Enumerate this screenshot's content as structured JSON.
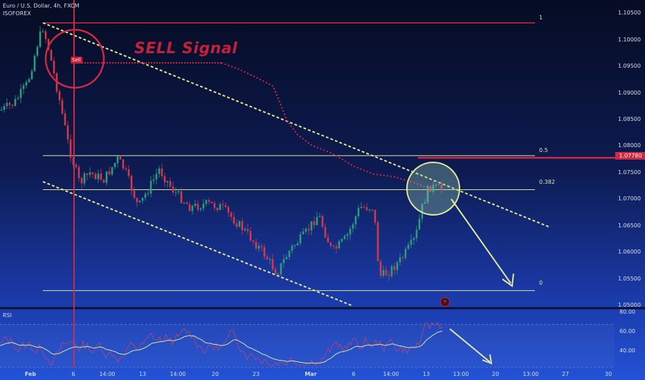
{
  "header": {
    "symbol": "Euro / U.S. Dollar, 4h, FXCM",
    "author": "ISOFOREX"
  },
  "annotations": {
    "sell_signal": "SELL Signal",
    "sell_tag": "Sell",
    "flash_icon": "flash-icon"
  },
  "price_axis": {
    "labels": [
      "1.10500",
      "1.10000",
      "1.09500",
      "1.09000",
      "1.08500",
      "1.08000",
      "1.07500",
      "1.07000",
      "1.06500",
      "1.06000",
      "1.05500",
      "1.05000"
    ],
    "current_price": "1.07780"
  },
  "fib_levels": {
    "one": "1",
    "half": "0.5",
    "f382": "0.382",
    "zero": "0"
  },
  "rsi": {
    "title": "RSI",
    "labels": [
      "80.00",
      "60.00",
      "40.00"
    ]
  },
  "time_axis": [
    {
      "label": "Feb",
      "bold": true
    },
    {
      "label": "6",
      "bold": false
    },
    {
      "label": "14:00",
      "bold": false
    },
    {
      "label": "13",
      "bold": false
    },
    {
      "label": "14:00",
      "bold": false
    },
    {
      "label": "20",
      "bold": false
    },
    {
      "label": "23",
      "bold": false
    },
    {
      "label": "Mar",
      "bold": true
    },
    {
      "label": "6",
      "bold": false
    },
    {
      "label": "14:00",
      "bold": false
    },
    {
      "label": "13",
      "bold": false
    },
    {
      "label": "13:00",
      "bold": false
    },
    {
      "label": "20",
      "bold": false
    },
    {
      "label": "13:00",
      "bold": false
    },
    {
      "label": "27",
      "bold": false
    },
    {
      "label": "30",
      "bold": false
    }
  ],
  "colors": {
    "up": "#2e9e7a",
    "down": "#d23a4a",
    "fib": "#e3eb9a",
    "trend": "#e6e888",
    "signal": "#d12a40",
    "rsi_line": "#b0457a",
    "rsi_ma": "#d8e6a0"
  },
  "chart_data": {
    "type": "candlestick",
    "instrument": "Euro / U.S. Dollar",
    "timeframe": "4h",
    "ylim": [
      1.0495,
      1.1075
    ],
    "key_levels": {
      "fib_1": 1.1032,
      "fib_0.5": 1.0782,
      "fib_0.382": 1.0718,
      "fib_0": 1.0528,
      "current": 1.0778
    },
    "price_path_approx": [
      {
        "x": "Feb",
        "close": 1.088
      },
      {
        "x": "6",
        "close": 1.079
      },
      {
        "x": "13",
        "close": 1.071
      },
      {
        "x": "20",
        "close": 1.0695
      },
      {
        "x": "23",
        "close": 1.061
      },
      {
        "x": "Mar",
        "close": 1.064
      },
      {
        "x": "6",
        "close": 1.068
      },
      {
        "x": "13",
        "close": 1.072
      }
    ],
    "rsi_ylim": [
      30,
      85
    ]
  }
}
